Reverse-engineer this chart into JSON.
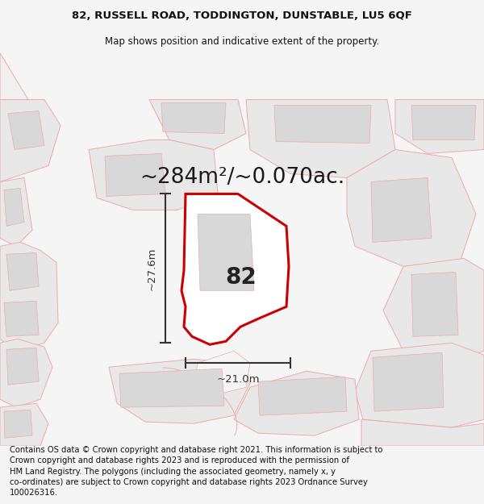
{
  "title_line1": "82, RUSSELL ROAD, TODDINGTON, DUNSTABLE, LU5 6QF",
  "title_line2": "Map shows position and indicative extent of the property.",
  "area_label": "~284m²/~0.070ac.",
  "property_number": "82",
  "width_label": "~21.0m",
  "height_label": "~27.6m",
  "footer_text": "Contains OS data © Crown copyright and database right 2021. This information is subject to Crown copyright and database rights 2023 and is reproduced with the permission of HM Land Registry. The polygons (including the associated geometry, namely x, y co-ordinates) are subject to Crown copyright and database rights 2023 Ordnance Survey 100026316.",
  "bg_color": "#f5f5f5",
  "map_bg": "#f9f9f9",
  "property_fill": "#ffffff",
  "property_edge": "#cc0000",
  "neighbor_fill": "#e8e8e8",
  "neighbor_edge": "#f0aaaa",
  "road_fill": "#ffffff",
  "dim_color": "#333333",
  "title_fontsize": 9.5,
  "subtitle_fontsize": 8.5,
  "area_fontsize": 19,
  "number_fontsize": 20,
  "dim_fontsize": 9.5,
  "footer_fontsize": 7.2
}
